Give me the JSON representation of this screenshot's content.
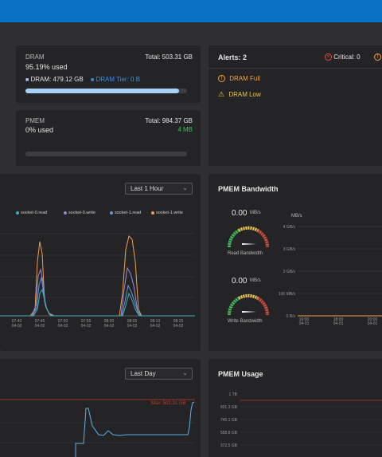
{
  "colors": {
    "topbar": "#0a72c4",
    "accent_blue": "#3d8fe8",
    "green": "#3cbf55",
    "orange": "#f0a04b",
    "red": "#e0483a",
    "yellow": "#e9c44a"
  },
  "dram": {
    "title": "DRAM",
    "total": "Total: 503.31 GB",
    "used": "95.19% used",
    "dram_label": "DRAM: 479.12 GB",
    "tier_label": "DRAM Tier: 0 B",
    "progress": 0.95
  },
  "pmem": {
    "title": "PMEM",
    "total": "Total: 984.37 GB",
    "used": "0% used",
    "extra": "4 MB",
    "progress": 0.0
  },
  "alerts": {
    "title": "Alerts: 2",
    "critical": "Critical: 0",
    "items": [
      {
        "label": "DRAM Full",
        "icon": "error-circle-icon"
      },
      {
        "label": "DRAM Low",
        "icon": "warning-triangle-icon"
      }
    ]
  },
  "bandwidth_chart": {
    "range_select": "Last 1 Hour",
    "legend": [
      "socket-0.read",
      "socket-0.write",
      "socket-1.read",
      "socket-1.write"
    ],
    "x_ticks": [
      [
        "07:40",
        "04-02"
      ],
      [
        "07:45",
        "04-02"
      ],
      [
        "07:50",
        "04-02"
      ],
      [
        "07:55",
        "04-02"
      ],
      [
        "08:00",
        "04-02"
      ],
      [
        "08:05",
        "04-02"
      ],
      [
        "08:10",
        "04-02"
      ],
      [
        "08:15",
        "04-02"
      ]
    ]
  },
  "pmem_bandwidth": {
    "title": "PMEM Bandwidth",
    "read_value": "0.00",
    "read_unit": "MB/s",
    "read_label": "Read Bandwidth",
    "write_value": "0.00",
    "write_unit": "MB/s",
    "write_label": "Write Bandwidth",
    "y_unit": "MB/s",
    "y_ticks": [
      "4 GB/s",
      "3 GB/s",
      "2 GB/s",
      "100 MB/s",
      "0 B/s"
    ],
    "x_ticks": [
      [
        "16:00",
        "04-01"
      ],
      [
        "18:00",
        "04-01"
      ],
      [
        "20:00",
        "04-01"
      ]
    ]
  },
  "usage_chart": {
    "range_select": "Last Day",
    "max_label": "Max: 503.31 GB"
  },
  "pmem_usage": {
    "title": "PMEM Usage",
    "y_ticks": [
      "1 TB",
      "931.3 GB",
      "745.1 GB",
      "558.8 GB",
      "372.5 GB"
    ]
  }
}
